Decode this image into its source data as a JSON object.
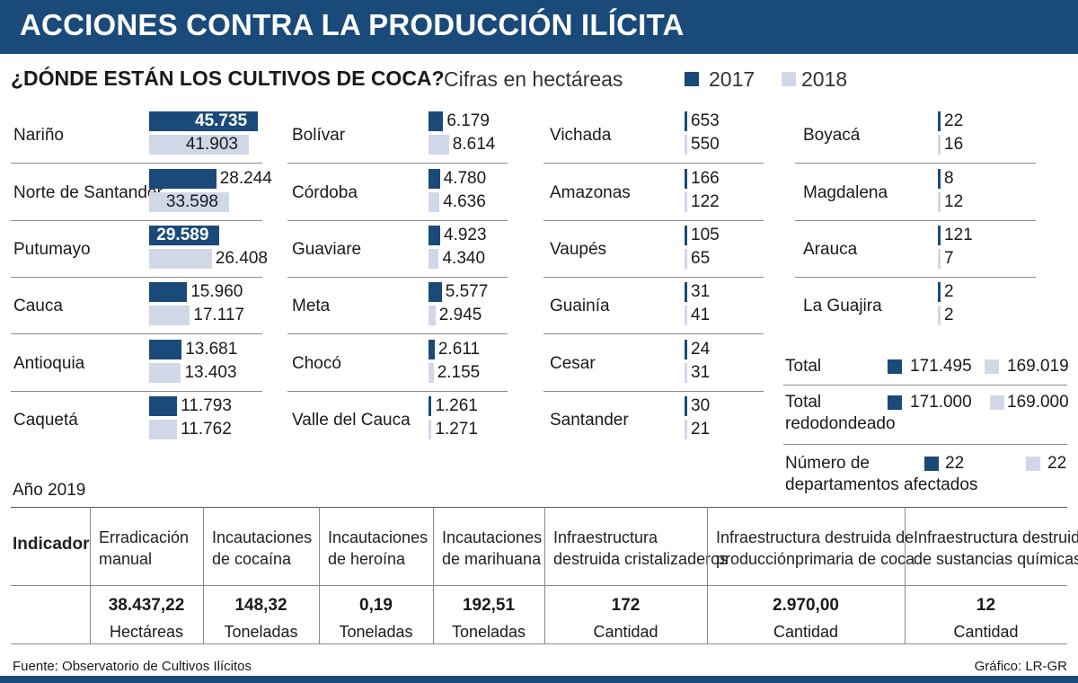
{
  "header": {
    "title": "ACCIONES CONTRA LA PRODUCCIÓN ILÍCITA"
  },
  "subtitle": "¿DÓNDE ESTÁN LOS CULTIVOS DE COCA?",
  "units": "Cifras en hectáreas",
  "colors": {
    "series2017": "#1a4a7a",
    "series2018": "#d0d8e8",
    "header": "#1a4a7a"
  },
  "chart_data": {
    "type": "bar",
    "title": "¿DÓNDE ESTÁN LOS CULTIVOS DE COCA?",
    "subtitle": "Cifras en hectáreas",
    "series_names": [
      "2017",
      "2018"
    ],
    "columns": [
      [
        {
          "name": "Nariño",
          "v2017": 45735,
          "l2017": "45.735",
          "v2018": 41903,
          "l2018": "41.903"
        },
        {
          "name": "Norte de Santander",
          "v2017": 28244,
          "l2017": "28.244",
          "v2018": 33598,
          "l2018": "33.598"
        },
        {
          "name": "Putumayo",
          "v2017": 29589,
          "l2017": "29.589",
          "v2018": 26408,
          "l2018": "26.408"
        },
        {
          "name": "Cauca",
          "v2017": 15960,
          "l2017": "15.960",
          "v2018": 17117,
          "l2018": "17.117"
        },
        {
          "name": "Antioquia",
          "v2017": 13681,
          "l2017": "13.681",
          "v2018": 13403,
          "l2018": "13.403"
        },
        {
          "name": "Caquetá",
          "v2017": 11793,
          "l2017": "11.793",
          "v2018": 11762,
          "l2018": "11.762"
        }
      ],
      [
        {
          "name": "Bolívar",
          "v2017": 6179,
          "l2017": "6.179",
          "v2018": 8614,
          "l2018": "8.614"
        },
        {
          "name": "Córdoba",
          "v2017": 4780,
          "l2017": "4.780",
          "v2018": 4636,
          "l2018": "4.636"
        },
        {
          "name": "Guaviare",
          "v2017": 4923,
          "l2017": "4.923",
          "v2018": 4340,
          "l2018": "4.340"
        },
        {
          "name": "Meta",
          "v2017": 5577,
          "l2017": "5.577",
          "v2018": 2945,
          "l2018": "2.945"
        },
        {
          "name": "Chocó",
          "v2017": 2611,
          "l2017": "2.611",
          "v2018": 2155,
          "l2018": "2.155"
        },
        {
          "name": "Valle del Cauca",
          "v2017": 1261,
          "l2017": "1.261",
          "v2018": 1271,
          "l2018": "1.271"
        }
      ],
      [
        {
          "name": "Vichada",
          "v2017": 653,
          "l2017": "653",
          "v2018": 550,
          "l2018": "550"
        },
        {
          "name": "Amazonas",
          "v2017": 166,
          "l2017": "166",
          "v2018": 122,
          "l2018": "122"
        },
        {
          "name": "Vaupés",
          "v2017": 105,
          "l2017": "105",
          "v2018": 65,
          "l2018": "65"
        },
        {
          "name": "Guainía",
          "v2017": 31,
          "l2017": "31",
          "v2018": 41,
          "l2018": "41"
        },
        {
          "name": "Cesar",
          "v2017": 24,
          "l2017": "24",
          "v2018": 31,
          "l2018": "31"
        },
        {
          "name": "Santander",
          "v2017": 30,
          "l2017": "30",
          "v2018": 21,
          "l2018": "21"
        }
      ],
      [
        {
          "name": "Boyacá",
          "v2017": 22,
          "l2017": "22",
          "v2018": 16,
          "l2018": "16"
        },
        {
          "name": "Magdalena",
          "v2017": 8,
          "l2017": "8",
          "v2018": 12,
          "l2018": "12"
        },
        {
          "name": "Arauca",
          "v2017": 121,
          "l2017": "121",
          "v2018": 7,
          "l2018": "7"
        },
        {
          "name": "La Guajira",
          "v2017": 2,
          "l2017": "2",
          "v2018": 2,
          "l2018": "2"
        }
      ]
    ],
    "totals": [
      {
        "label": "Total",
        "v2017": "171.495",
        "v2018": "169.019"
      },
      {
        "label": "Total redodondeado",
        "v2017": "171.000",
        "v2018": "169.000"
      },
      {
        "label": "Número de departamentos afectados",
        "v2017": "22",
        "v2018": "22"
      }
    ]
  },
  "summary_labels": {
    "total": "Total",
    "rounded_line1": "Total",
    "rounded_line2": "redodondeado",
    "depts_line1": "Número de",
    "depts_line2": "departamentos afectados"
  },
  "table": {
    "year_label": "Año 2019",
    "row_header": "Indicador",
    "columns": [
      {
        "header_line1": "Erradicación",
        "header_line2": "manual",
        "value": "38.437,22",
        "unit": "Hectáreas"
      },
      {
        "header_line1": "Incautaciones",
        "header_line2": "de cocaína",
        "value": "148,32",
        "unit": "Toneladas"
      },
      {
        "header_line1": "Incautaciones",
        "header_line2": "de heroína",
        "value": "0,19",
        "unit": "Toneladas"
      },
      {
        "header_line1": "Incautaciones",
        "header_line2": "de marihuana",
        "value": "192,51",
        "unit": "Toneladas"
      },
      {
        "header_line1": "Infraestructura",
        "header_line2": "destruida cristalizaderos",
        "value": "172",
        "unit": "Cantidad"
      },
      {
        "header_line1": "Infraestructura destruida de",
        "header_line2": "producciónprimaria de coca",
        "value": "2.970,00",
        "unit": "Cantidad"
      },
      {
        "header_line1": "Infraestructura destruida",
        "header_line2": "de sustancias químicas",
        "value": "12",
        "unit": "Cantidad"
      }
    ]
  },
  "footer": {
    "source": "Fuente: Observatorio de Cultivos Ilícitos",
    "credit": "Gráfico: LR-GR"
  }
}
